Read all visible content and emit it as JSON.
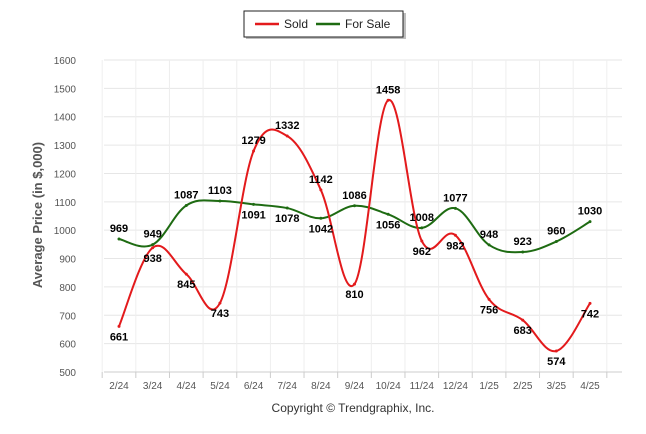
{
  "chart_data": {
    "type": "line",
    "ylabel": "Average Price (in $,000)",
    "categories": [
      "2/24",
      "3/24",
      "4/24",
      "5/24",
      "6/24",
      "7/24",
      "8/24",
      "9/24",
      "10/24",
      "11/24",
      "12/24",
      "1/25",
      "2/25",
      "3/25",
      "4/25"
    ],
    "ylim": [
      500,
      1600
    ],
    "yticks": [
      500,
      600,
      700,
      800,
      900,
      1000,
      1100,
      1200,
      1300,
      1400,
      1500,
      1600
    ],
    "grid": true,
    "legend_placement": "top-center",
    "series": [
      {
        "name": "Sold",
        "color": "#e31a1c",
        "values": [
          661,
          938,
          845,
          743,
          1279,
          1332,
          1142,
          810,
          1458,
          962,
          982,
          756,
          683,
          574,
          742
        ]
      },
      {
        "name": "For Sale",
        "color": "#1e6b12",
        "values": [
          969,
          949,
          1087,
          1103,
          1091,
          1078,
          1042,
          1086,
          1056,
          1008,
          1077,
          948,
          923,
          960,
          1030
        ]
      }
    ]
  },
  "footer": "Copyright © Trendgraphix, Inc."
}
